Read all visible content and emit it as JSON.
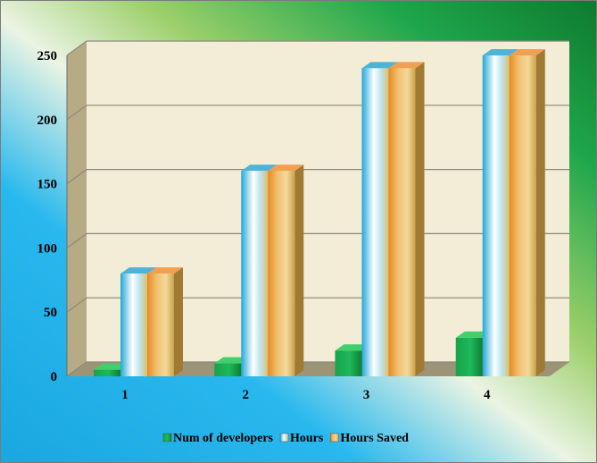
{
  "chart_data": {
    "type": "bar",
    "categories": [
      "1",
      "2",
      "3",
      "4"
    ],
    "series": [
      {
        "name": "Num of developers",
        "values": [
          5,
          10,
          20,
          30
        ]
      },
      {
        "name": "Hours",
        "values": [
          80,
          160,
          240,
          250
        ]
      },
      {
        "name": "Hours Saved",
        "values": [
          80,
          160,
          240,
          250
        ]
      }
    ],
    "ylim": [
      0,
      250
    ],
    "yticks": [
      0,
      50,
      100,
      150,
      200,
      250
    ],
    "grid": true,
    "legend_position": "bottom",
    "colors": {
      "Num of developers": "#1fa84a",
      "Hours": "#7ec8e3",
      "Hours Saved": "#e8a040",
      "wall": "#f3ecd6",
      "gridline": "#8a8a7a"
    }
  }
}
